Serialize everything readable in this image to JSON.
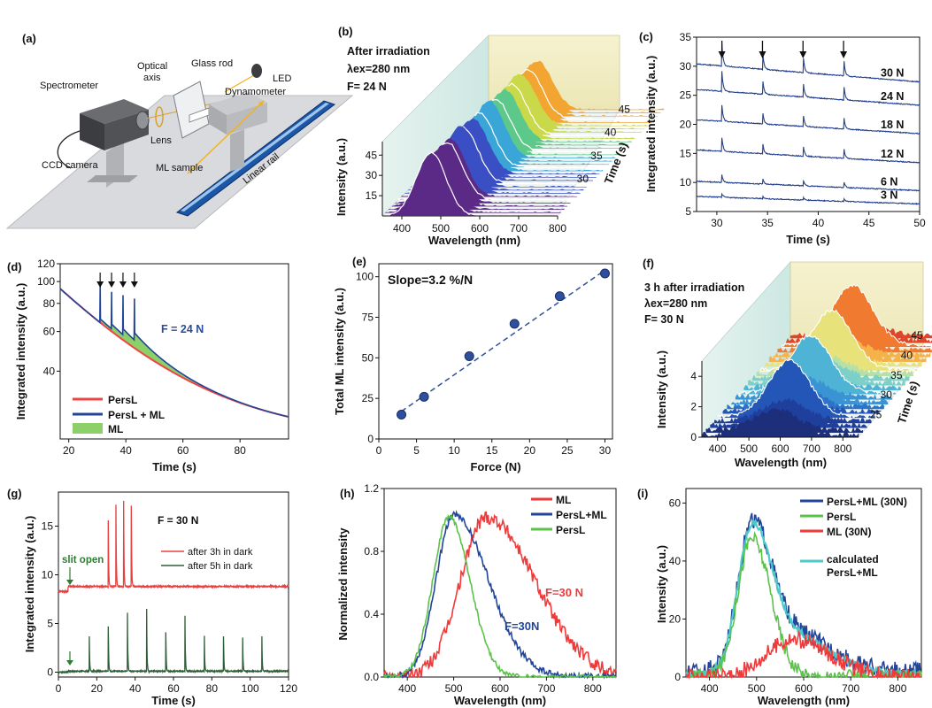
{
  "figure": {
    "panels": [
      "(a)",
      "(b)",
      "(c)",
      "(d)",
      "(e)",
      "(f)",
      "(g)",
      "(h)",
      "(i)"
    ]
  },
  "setup": {
    "labels": [
      "Spectrometer",
      "Optical axis",
      "Glass rod",
      "LED",
      "Dynamometer",
      "Lens",
      "ML sample",
      "CCD camera",
      "Linear rail"
    ]
  },
  "chart_data": [
    {
      "id": "b",
      "type": "area",
      "annotation": [
        "After irradiation",
        "λex=280 nm",
        "F= 24 N"
      ],
      "xlabel": "Wavelength (nm)",
      "ylabel": "Intensity (a.u.)",
      "zlabel": "Time (s)",
      "x_ticks": [
        "400",
        "500",
        "600",
        "700",
        "800"
      ],
      "y_ticks": [
        "15",
        "30",
        "45"
      ],
      "z_ticks": [
        "30",
        "35",
        "40",
        "45"
      ],
      "xlim": [
        350,
        800
      ],
      "ylim": [
        0,
        55
      ],
      "zlim": [
        25,
        48
      ]
    },
    {
      "id": "c",
      "type": "line",
      "xlabel": "Time (s)",
      "ylabel": "Integrated intensity (a.u.)",
      "xlim": [
        28,
        50
      ],
      "ylim": [
        5,
        35
      ],
      "x_ticks": [
        "30",
        "35",
        "40",
        "45",
        "50"
      ],
      "y_ticks": [
        "5",
        "10",
        "15",
        "20",
        "25",
        "30",
        "35"
      ],
      "series": [
        {
          "name": "3 N",
          "start": 7.6,
          "end": 6.3,
          "spike": 0.6
        },
        {
          "name": "6 N",
          "start": 10.2,
          "end": 8.6,
          "spike": 1.3
        },
        {
          "name": "12 N",
          "start": 15.6,
          "end": 13.4,
          "spike": 2.4
        },
        {
          "name": "18 N",
          "start": 20.8,
          "end": 18.4,
          "spike": 2.8
        },
        {
          "name": "24 N",
          "start": 26.0,
          "end": 23.3,
          "spike": 3.4
        },
        {
          "name": "30 N",
          "start": 30.4,
          "end": 27.3,
          "spike": 3.8
        }
      ],
      "spike_times": [
        30.5,
        34.5,
        38.5,
        42.5
      ]
    },
    {
      "id": "d",
      "type": "line",
      "annotation": "F = 24 N",
      "xlabel": "Time (s)",
      "ylabel": "Integrated intensity (a.u.)",
      "xlim": [
        17,
        97
      ],
      "ylim": [
        20,
        120
      ],
      "x_ticks": [
        "20",
        "40",
        "60",
        "80"
      ],
      "y_ticks": [
        "40",
        "60",
        "80",
        "100",
        "120"
      ],
      "legend": [
        "PersL",
        "PersL + ML",
        "ML"
      ],
      "spike_times": [
        31,
        35,
        39,
        43
      ],
      "spike_peaks": [
        97,
        90,
        87,
        84
      ]
    },
    {
      "id": "e",
      "type": "scatter",
      "annotation": "Slope=3.2 %/N",
      "xlabel": "Force (N)",
      "ylabel": "Total ML intensity (a.u.)",
      "xlim": [
        0,
        31
      ],
      "ylim": [
        0,
        108
      ],
      "x_ticks": [
        "0",
        "5",
        "10",
        "15",
        "20",
        "25",
        "30"
      ],
      "y_ticks": [
        "0",
        "25",
        "50",
        "75",
        "100"
      ],
      "x": [
        3,
        6,
        12,
        18,
        24,
        30
      ],
      "y": [
        15,
        26,
        51,
        71,
        88,
        102
      ],
      "fit": [
        [
          3,
          17
        ],
        [
          30,
          104
        ]
      ]
    },
    {
      "id": "f",
      "type": "area",
      "annotation": [
        "3 h after irradiation",
        "λex=280 nm",
        "F= 30 N"
      ],
      "xlabel": "Wavelength (nm)",
      "ylabel": "Intensity (a.u.)",
      "zlabel": "Time (s)",
      "x_ticks": [
        "400",
        "500",
        "600",
        "700",
        "800"
      ],
      "y_ticks": [
        "0",
        "2",
        "4"
      ],
      "z_ticks": [
        "25",
        "30",
        "35",
        "40",
        "45"
      ],
      "xlim": [
        350,
        850
      ],
      "ylim": [
        0,
        5
      ],
      "zlim": [
        22,
        47
      ]
    },
    {
      "id": "g",
      "type": "line",
      "annotation": "F = 30 N",
      "marker": "slit open",
      "xlabel": "Time (s)",
      "ylabel": "Integrated intensity (a.u.)",
      "xlim": [
        0,
        120
      ],
      "ylim": [
        -0.5,
        18.5
      ],
      "x_ticks": [
        "0",
        "20",
        "40",
        "60",
        "80",
        "100",
        "120"
      ],
      "y_ticks": [
        "0",
        "5",
        "10",
        "15"
      ],
      "series": [
        {
          "name": "after 3h in dark",
          "color": "#e84040",
          "base": 8.8,
          "spike_times": [
            26,
            30,
            34,
            38
          ],
          "spike_peaks": [
            15.6,
            17.2,
            17.6,
            17.1
          ]
        },
        {
          "name": "after 5h in dark",
          "color": "#2f5f38",
          "base": 0.1,
          "spike_times": [
            16,
            26,
            36,
            46,
            56,
            66,
            76,
            86,
            96,
            106
          ],
          "spike_peaks": [
            6.0,
            4.7,
            6.1,
            6.5,
            4.1,
            5.8,
            6.1,
            6.0,
            5.8,
            6.0
          ]
        }
      ]
    },
    {
      "id": "h",
      "type": "line",
      "annotations": [
        "F=30 N",
        "F=30N"
      ],
      "xlabel": "Wavelength (nm)",
      "ylabel": "Normalized intensity",
      "xlim": [
        350,
        850
      ],
      "ylim": [
        0,
        1.2
      ],
      "x_ticks": [
        "400",
        "500",
        "600",
        "700",
        "800"
      ],
      "y_ticks": [
        "0.0",
        "0.4",
        "0.8",
        "1.2"
      ],
      "series": [
        {
          "name": "ML",
          "color": "#f03a3a",
          "peak": 570,
          "amp": 1.02,
          "width": 85
        },
        {
          "name": "PersL+ML",
          "color": "#22459a",
          "peak": 500,
          "amp": 1.03,
          "width": 55
        },
        {
          "name": "PersL",
          "color": "#5cc24a",
          "peak": 490,
          "amp": 1.02,
          "width": 40
        }
      ]
    },
    {
      "id": "i",
      "type": "line",
      "xlabel": "Wavelength (nm)",
      "ylabel": "Intensity (a.u.)",
      "xlim": [
        350,
        850
      ],
      "ylim": [
        0,
        65
      ],
      "x_ticks": [
        "400",
        "500",
        "600",
        "700",
        "800"
      ],
      "y_ticks": [
        "0",
        "20",
        "40",
        "60"
      ],
      "series": [
        {
          "name": "PersL+ML (30N)",
          "color": "#22459a",
          "peak": 495,
          "amp": 58
        },
        {
          "name": "PersL",
          "color": "#5cc24a",
          "peak": 490,
          "amp": 48
        },
        {
          "name": "ML (30N)",
          "color": "#f03a3a",
          "peak": 575,
          "amp": 13
        },
        {
          "name": "calculated PersL+ML",
          "color": "#4ec9c9",
          "peak": 495,
          "amp": 56
        }
      ]
    }
  ]
}
